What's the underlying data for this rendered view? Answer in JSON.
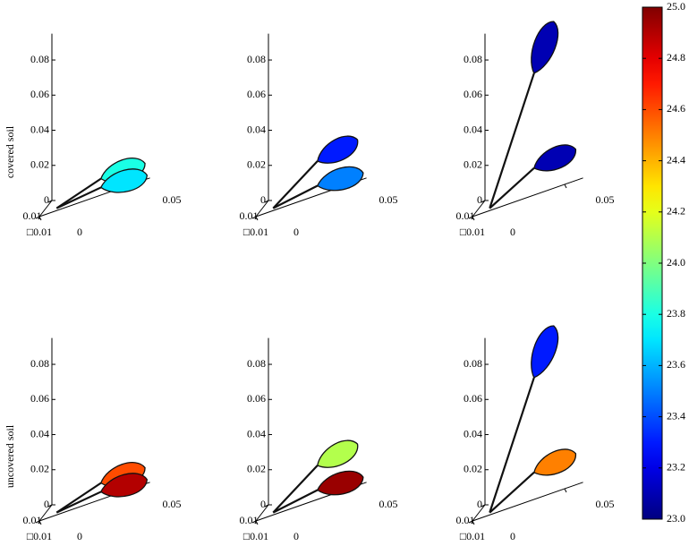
{
  "chart_data": {
    "type": "surface",
    "row_labels": [
      "covered soil",
      "uncovered soil"
    ],
    "xlim": [
      0,
      0.06
    ],
    "xticks": [
      0,
      0.05
    ],
    "ylim": [
      -0.01,
      0.01
    ],
    "yticks": [
      {
        "value": 0.01,
        "label": "0.01"
      },
      {
        "value": -0.01,
        "label": "□0.01"
      }
    ],
    "zlim": [
      0,
      0.095
    ],
    "zticks": [
      0,
      0.02,
      0.04,
      0.06,
      0.08
    ],
    "clim": [
      23,
      25
    ],
    "cticks": [
      {
        "value": 23,
        "label": "23.0"
      },
      {
        "value": 23.2,
        "label": "23.2"
      },
      {
        "value": 23.4,
        "label": "23.4"
      },
      {
        "value": 23.6,
        "label": "23.6"
      },
      {
        "value": 23.8,
        "label": "23.8"
      },
      {
        "value": 24,
        "label": "24.0"
      },
      {
        "value": 24.2,
        "label": "24.2"
      },
      {
        "value": 24.4,
        "label": "24.4"
      },
      {
        "value": 24.6,
        "label": "24.6"
      },
      {
        "value": 24.8,
        "label": "24.8"
      },
      {
        "value": 25,
        "label": "25.0"
      }
    ],
    "panels": [
      {
        "leaves": [
          {
            "height": 0.006,
            "temperature": 23.8
          },
          {
            "height": 0.001,
            "temperature": 23.7
          }
        ]
      },
      {
        "leaves": [
          {
            "height": 0.016,
            "temperature": 23.3
          },
          {
            "height": 0.002,
            "temperature": 23.5
          }
        ]
      },
      {
        "leaves": [
          {
            "height": 0.066,
            "temperature": 23.1
          },
          {
            "height": 0.012,
            "temperature": 23.1
          }
        ]
      },
      {
        "leaves": [
          {
            "height": 0.006,
            "temperature": 24.6
          },
          {
            "height": 0.001,
            "temperature": 24.9
          }
        ]
      },
      {
        "leaves": [
          {
            "height": 0.016,
            "temperature": 24.1
          },
          {
            "height": 0.002,
            "temperature": 24.95
          }
        ]
      },
      {
        "leaves": [
          {
            "height": 0.066,
            "temperature": 23.3
          },
          {
            "height": 0.012,
            "temperature": 24.5
          }
        ]
      }
    ]
  }
}
